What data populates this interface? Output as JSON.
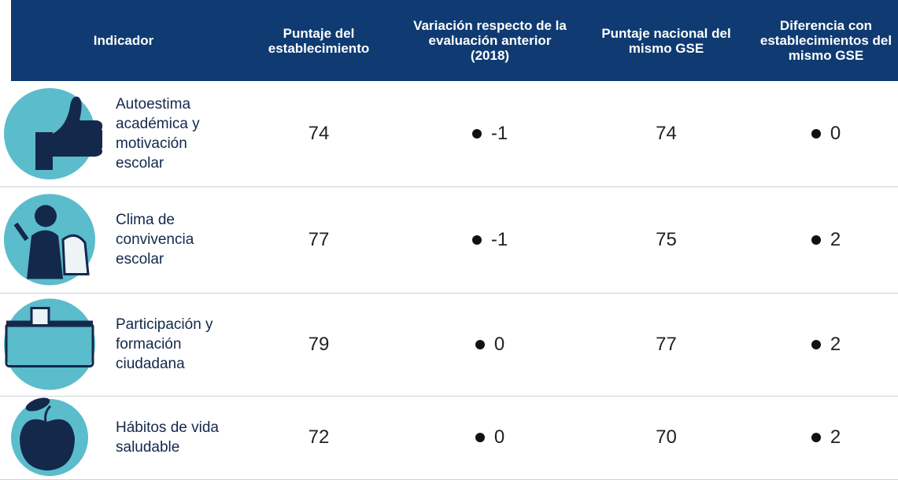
{
  "table": {
    "header": [
      "Indicador",
      "Puntaje del establecimiento",
      "Variación respecto de la evaluación anterior (2018)",
      "Puntaje nacional del mismo GSE",
      "Diferencia con establecimientos del mismo GSE"
    ],
    "rows": [
      [
        "Autoestima académica y motivación escolar",
        74,
        -1,
        74,
        0
      ],
      [
        "Clima de convivencia escolar",
        77,
        -1,
        75,
        2
      ],
      [
        "Participación y formación ciudadana",
        79,
        0,
        77,
        2
      ],
      [
        "Hábitos de vida saludable",
        72,
        0,
        70,
        2
      ]
    ]
  }
}
